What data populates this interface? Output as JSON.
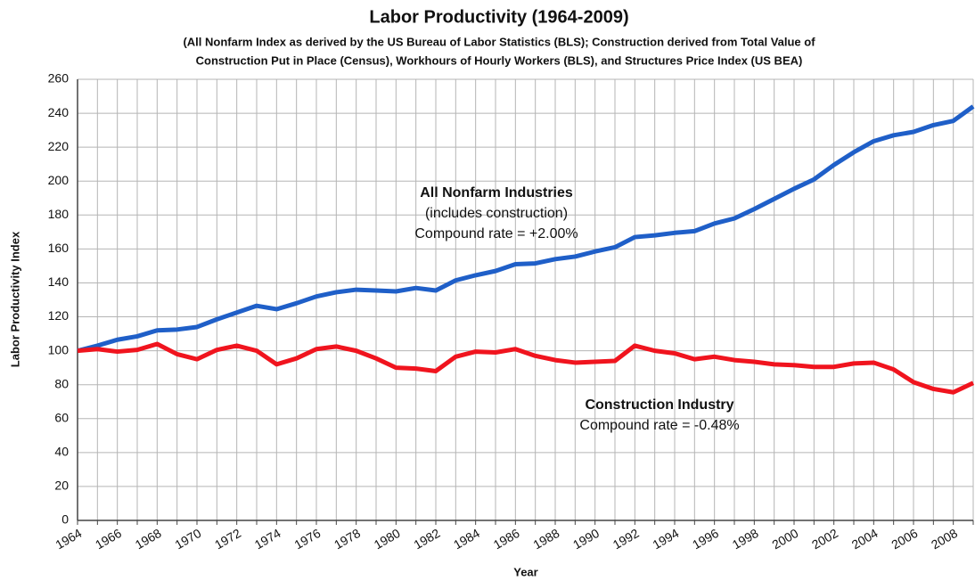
{
  "chart_data": {
    "type": "line",
    "title": "Labor Productivity (1964-2009)",
    "subtitle": [
      "(All Nonfarm Index as derived by the US Bureau of Labor Statistics (BLS); Construction derived from Total Value of",
      "Construction Put in Place (Census), Workhours of Hourly Workers (BLS), and Structures Price Index (US BEA)"
    ],
    "x_label": "Year",
    "y_label": "Labor Productivity Index",
    "categories": [
      "1964",
      null,
      "1966",
      null,
      "1968",
      null,
      "1970",
      null,
      "1972",
      null,
      "1974",
      null,
      "1976",
      null,
      "1978",
      null,
      "1980",
      null,
      "1982",
      null,
      "1984",
      null,
      "1986",
      null,
      "1988",
      null,
      "1990",
      null,
      "1992",
      null,
      "1994",
      null,
      "1996",
      null,
      "1998",
      null,
      "2000",
      null,
      "2002",
      null,
      "2004",
      null,
      "2006",
      null,
      "2008",
      null
    ],
    "series": [
      {
        "name": "All Nonfarm Industries",
        "color": "#1f5fc8",
        "values": [
          100,
          103,
          106.5,
          108.5,
          112,
          112.5,
          114,
          118.5,
          122.5,
          126.5,
          124.5,
          128,
          132,
          134.5,
          136,
          135.5,
          135,
          137,
          135.5,
          141.5,
          144.5,
          147,
          151,
          151.5,
          154,
          155.5,
          158.5,
          161,
          167,
          168,
          169.5,
          170.5,
          175,
          178,
          183.5,
          189.5,
          195.5,
          201,
          209.5,
          217,
          223.5,
          227,
          229,
          233,
          235.5,
          244
        ]
      },
      {
        "name": "Construction Industry",
        "color": "#f0141e",
        "values": [
          100,
          101,
          99.5,
          100.5,
          104,
          98,
          95,
          100.5,
          103,
          100,
          92,
          95.5,
          101,
          102.5,
          100,
          95.5,
          90,
          89.5,
          88,
          96.5,
          99.5,
          99,
          101,
          97,
          94.5,
          93,
          93.5,
          94,
          103,
          100,
          98.5,
          95,
          96.5,
          94.5,
          93.5,
          92,
          91.5,
          90.5,
          90.5,
          92.5,
          93,
          89,
          81.5,
          77.5,
          75.5,
          81
        ]
      }
    ],
    "annotations": [
      "(includes construction)",
      "Compound rate = +2.00%",
      "Compound rate = -0.48%"
    ],
    "ylim": [
      0,
      260
    ],
    "yticks": [
      0,
      20,
      40,
      60,
      80,
      100,
      120,
      140,
      160,
      180,
      200,
      220,
      240,
      260
    ],
    "grid": true
  }
}
